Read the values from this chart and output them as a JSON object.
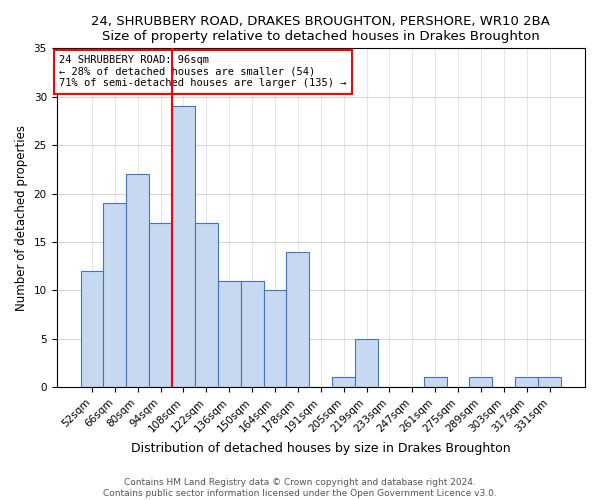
{
  "title": "24, SHRUBBERY ROAD, DRAKES BROUGHTON, PERSHORE, WR10 2BA",
  "subtitle": "Size of property relative to detached houses in Drakes Broughton",
  "xlabel": "Distribution of detached houses by size in Drakes Broughton",
  "ylabel": "Number of detached properties",
  "footer_line1": "Contains HM Land Registry data © Crown copyright and database right 2024.",
  "footer_line2": "Contains public sector information licensed under the Open Government Licence v3.0.",
  "annotation_line1": "24 SHRUBBERY ROAD: 96sqm",
  "annotation_line2": "← 28% of detached houses are smaller (54)",
  "annotation_line3": "71% of semi-detached houses are larger (135) →",
  "bar_labels": [
    "52sqm",
    "66sqm",
    "80sqm",
    "94sqm",
    "108sqm",
    "122sqm",
    "136sqm",
    "150sqm",
    "164sqm",
    "178sqm",
    "191sqm",
    "205sqm",
    "219sqm",
    "233sqm",
    "247sqm",
    "261sqm",
    "275sqm",
    "289sqm",
    "303sqm",
    "317sqm",
    "331sqm"
  ],
  "bar_values": [
    12,
    19,
    22,
    17,
    29,
    17,
    11,
    11,
    10,
    14,
    0,
    1,
    5,
    0,
    0,
    1,
    0,
    1,
    0,
    1,
    1
  ],
  "bar_color": "#c6d9f0",
  "bar_edge_color": "#4472c4",
  "vline_x": 3.5,
  "vline_color": "red",
  "annotation_box_color": "white",
  "annotation_box_edge_color": "red",
  "ylim": [
    0,
    35
  ],
  "yticks": [
    0,
    5,
    10,
    15,
    20,
    25,
    30,
    35
  ],
  "title_fontsize": 9.5,
  "subtitle_fontsize": 9,
  "xlabel_fontsize": 9,
  "ylabel_fontsize": 8.5,
  "tick_fontsize": 7.5,
  "annotation_fontsize": 7.5,
  "footer_fontsize": 6.5,
  "background_color": "#ffffff",
  "fig_width": 6.0,
  "fig_height": 5.0,
  "fig_dpi": 100
}
